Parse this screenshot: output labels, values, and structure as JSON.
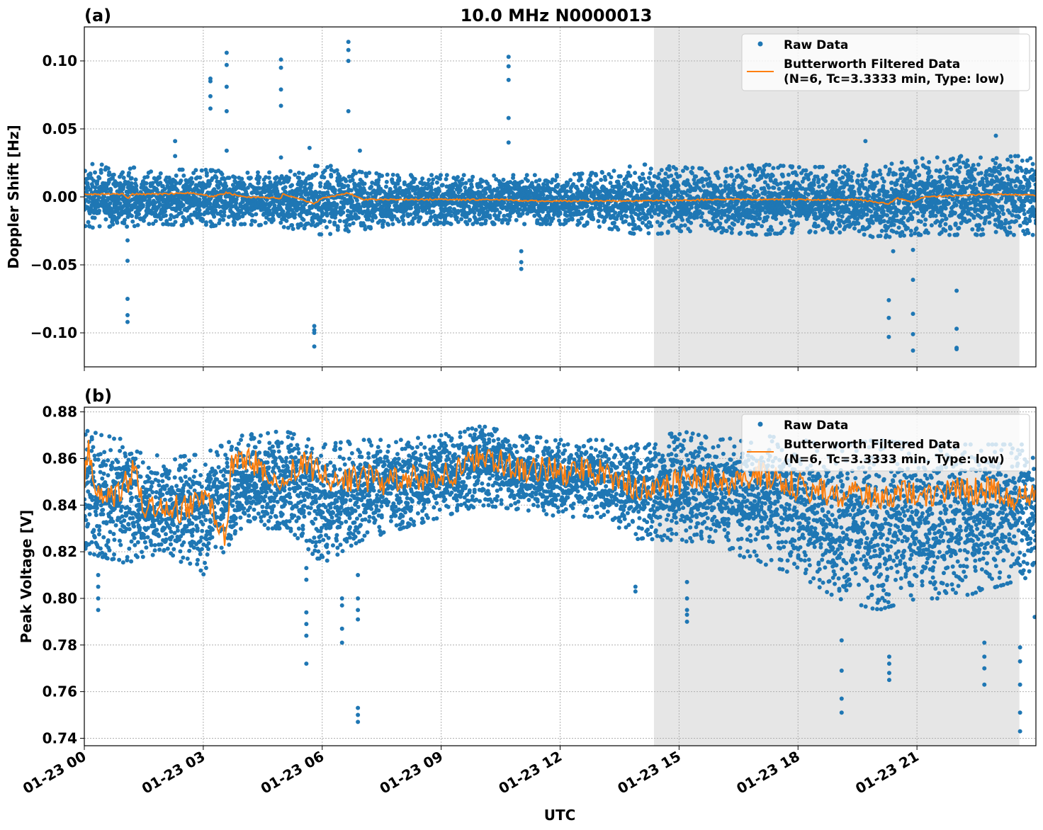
{
  "figure_title": "10.0 MHz N0000013",
  "chart_data": [
    {
      "panel_label": "(a)",
      "type": "scatter+line",
      "title": "10.0 MHz N0000013",
      "xlabel": "",
      "ylabel": "Doppler Shift [Hz]",
      "x_unit": "hours UTC on 01-23",
      "xlim": [
        "01-23 00:00",
        "01-24 00:00"
      ],
      "ylim": [
        -0.125,
        0.125
      ],
      "yticks": [
        "0.10",
        "0.05",
        "0.00",
        "−0.05",
        "−0.10"
      ],
      "ytick_values": [
        0.1,
        0.05,
        0.0,
        -0.05,
        -0.1
      ],
      "grid": true,
      "legend_placement": "upper-right",
      "shaded_interval": [
        "01-23 14:22",
        "01-23 23:35"
      ],
      "shade_color": "#e6e6e6",
      "series": [
        {
          "name": "Raw Data",
          "kind": "scatter",
          "color": "#1f77b4",
          "envelope_hourly": [
            [
              0,
              -0.025,
              0.025
            ],
            [
              1,
              -0.022,
              0.022
            ],
            [
              2,
              -0.02,
              0.02
            ],
            [
              3,
              -0.022,
              0.02
            ],
            [
              4,
              -0.02,
              0.018
            ],
            [
              5,
              -0.022,
              0.018
            ],
            [
              6,
              -0.028,
              0.024
            ],
            [
              7,
              -0.024,
              0.018
            ],
            [
              8,
              -0.02,
              0.016
            ],
            [
              9,
              -0.02,
              0.016
            ],
            [
              10,
              -0.02,
              0.016
            ],
            [
              11,
              -0.02,
              0.016
            ],
            [
              12,
              -0.02,
              0.016
            ],
            [
              13,
              -0.022,
              0.018
            ],
            [
              14,
              -0.028,
              0.024
            ],
            [
              15,
              -0.026,
              0.022
            ],
            [
              16,
              -0.026,
              0.02
            ],
            [
              17,
              -0.028,
              0.024
            ],
            [
              18,
              -0.026,
              0.022
            ],
            [
              19,
              -0.026,
              0.022
            ],
            [
              20,
              -0.03,
              0.024
            ],
            [
              21,
              -0.028,
              0.028
            ],
            [
              22,
              -0.028,
              0.03
            ],
            [
              23,
              -0.028,
              0.03
            ],
            [
              24,
              -0.028,
              0.03
            ]
          ],
          "outliers": [
            [
              1.09,
              -0.032
            ],
            [
              1.09,
              -0.047
            ],
            [
              1.09,
              -0.075
            ],
            [
              1.09,
              -0.087
            ],
            [
              1.09,
              -0.092
            ],
            [
              2.29,
              0.041
            ],
            [
              2.29,
              0.03
            ],
            [
              3.18,
              0.087
            ],
            [
              3.18,
              0.085
            ],
            [
              3.18,
              0.074
            ],
            [
              3.18,
              0.065
            ],
            [
              3.59,
              0.106
            ],
            [
              3.59,
              0.097
            ],
            [
              3.59,
              0.081
            ],
            [
              3.59,
              0.063
            ],
            [
              3.59,
              0.034
            ],
            [
              4.96,
              0.101
            ],
            [
              4.96,
              0.095
            ],
            [
              4.96,
              0.079
            ],
            [
              4.96,
              0.067
            ],
            [
              4.96,
              0.029
            ],
            [
              5.68,
              0.036
            ],
            [
              5.8,
              -0.095
            ],
            [
              5.8,
              -0.098
            ],
            [
              5.8,
              -0.1
            ],
            [
              5.8,
              -0.11
            ],
            [
              6.66,
              0.114
            ],
            [
              6.66,
              0.108
            ],
            [
              6.66,
              0.1
            ],
            [
              6.66,
              0.063
            ],
            [
              6.95,
              0.034
            ],
            [
              10.7,
              0.103
            ],
            [
              10.7,
              0.096
            ],
            [
              10.7,
              0.086
            ],
            [
              10.7,
              0.058
            ],
            [
              10.7,
              0.04
            ],
            [
              11.02,
              -0.04
            ],
            [
              11.02,
              -0.048
            ],
            [
              11.02,
              -0.053
            ],
            [
              19.7,
              0.041
            ],
            [
              20.29,
              -0.076
            ],
            [
              20.29,
              -0.089
            ],
            [
              20.29,
              -0.103
            ],
            [
              20.4,
              -0.04
            ],
            [
              20.9,
              -0.039
            ],
            [
              20.9,
              -0.061
            ],
            [
              20.9,
              -0.086
            ],
            [
              20.9,
              -0.101
            ],
            [
              20.9,
              -0.113
            ],
            [
              22.0,
              -0.069
            ],
            [
              22.0,
              -0.097
            ],
            [
              22.0,
              -0.111
            ],
            [
              22.0,
              -0.112
            ],
            [
              22.99,
              0.045
            ]
          ]
        },
        {
          "name": "Butterworth Filtered Data\n(N=6, Tc=3.3333 min, Type: low)",
          "kind": "line",
          "color": "#ff7f0e",
          "points": [
            [
              0,
              0.002
            ],
            [
              1,
              0.002
            ],
            [
              1.09,
              -0.001
            ],
            [
              1.2,
              0.002
            ],
            [
              2,
              0.002
            ],
            [
              2.5,
              0.003
            ],
            [
              3,
              0.002
            ],
            [
              3.2,
              0.0
            ],
            [
              3.59,
              0.003
            ],
            [
              4,
              0.0
            ],
            [
              4.96,
              -0.001
            ],
            [
              5,
              0.002
            ],
            [
              5.5,
              -0.002
            ],
            [
              5.8,
              -0.005
            ],
            [
              6,
              -0.001
            ],
            [
              6.66,
              0.003
            ],
            [
              7,
              -0.002
            ],
            [
              9,
              -0.002
            ],
            [
              10.7,
              -0.002
            ],
            [
              11,
              -0.003
            ],
            [
              14,
              -0.003
            ],
            [
              16,
              -0.002
            ],
            [
              18,
              -0.002
            ],
            [
              19.5,
              -0.002
            ],
            [
              20.29,
              -0.005
            ],
            [
              20.5,
              -0.001
            ],
            [
              20.9,
              -0.004
            ],
            [
              21.2,
              0.0
            ],
            [
              22,
              0.001
            ],
            [
              23,
              0.002
            ],
            [
              24,
              0.001
            ]
          ]
        }
      ]
    },
    {
      "panel_label": "(b)",
      "type": "scatter+line",
      "xlabel": "UTC",
      "ylabel": "Peak Voltage [V]",
      "xlim": [
        "01-23 00:00",
        "01-24 00:00"
      ],
      "ylim": [
        0.7368,
        0.882
      ],
      "yticks": [
        "0.88",
        "0.86",
        "0.84",
        "0.82",
        "0.80",
        "0.78",
        "0.76",
        "0.74"
      ],
      "ytick_values": [
        0.88,
        0.86,
        0.84,
        0.82,
        0.8,
        0.78,
        0.76,
        0.74
      ],
      "xticks": [
        "01-23 00",
        "01-23 03",
        "01-23 06",
        "01-23 09",
        "01-23 12",
        "01-23 15",
        "01-23 18",
        "01-23 21"
      ],
      "xtick_values": [
        0,
        3,
        6,
        9,
        12,
        15,
        18,
        21
      ],
      "grid": true,
      "legend_placement": "upper-right",
      "shaded_interval": [
        "01-23 14:22",
        "01-23 23:35"
      ],
      "series": [
        {
          "name": "Raw Data",
          "kind": "scatter",
          "color": "#1f77b4",
          "envelope_hourly": [
            [
              0,
              0.82,
              0.872
            ],
            [
              1,
              0.815,
              0.868
            ],
            [
              2,
              0.82,
              0.86
            ],
            [
              3,
              0.81,
              0.862
            ],
            [
              4,
              0.83,
              0.87
            ],
            [
              5,
              0.83,
              0.872
            ],
            [
              6,
              0.815,
              0.866
            ],
            [
              7,
              0.825,
              0.868
            ],
            [
              8,
              0.83,
              0.868
            ],
            [
              9,
              0.835,
              0.87
            ],
            [
              10,
              0.84,
              0.874
            ],
            [
              11,
              0.838,
              0.87
            ],
            [
              12,
              0.835,
              0.868
            ],
            [
              13,
              0.835,
              0.868
            ],
            [
              14,
              0.825,
              0.866
            ],
            [
              15,
              0.825,
              0.872
            ],
            [
              16,
              0.822,
              0.868
            ],
            [
              17,
              0.815,
              0.87
            ],
            [
              18,
              0.81,
              0.868
            ],
            [
              19,
              0.8,
              0.866
            ],
            [
              20,
              0.795,
              0.868
            ],
            [
              21,
              0.8,
              0.866
            ],
            [
              22,
              0.8,
              0.866
            ],
            [
              23,
              0.805,
              0.866
            ],
            [
              24,
              0.81,
              0.866
            ]
          ],
          "outliers": [
            [
              0.35,
              0.795
            ],
            [
              0.35,
              0.8
            ],
            [
              0.35,
              0.805
            ],
            [
              0.35,
              0.81
            ],
            [
              5.6,
              0.772
            ],
            [
              5.6,
              0.784
            ],
            [
              5.6,
              0.789
            ],
            [
              5.6,
              0.794
            ],
            [
              5.6,
              0.808
            ],
            [
              5.6,
              0.813
            ],
            [
              6.5,
              0.781
            ],
            [
              6.5,
              0.787
            ],
            [
              6.5,
              0.797
            ],
            [
              6.5,
              0.8
            ],
            [
              6.9,
              0.747
            ],
            [
              6.9,
              0.75
            ],
            [
              6.9,
              0.753
            ],
            [
              6.9,
              0.791
            ],
            [
              6.9,
              0.795
            ],
            [
              6.9,
              0.8
            ],
            [
              6.9,
              0.81
            ],
            [
              13.9,
              0.803
            ],
            [
              13.9,
              0.805
            ],
            [
              15.2,
              0.79
            ],
            [
              15.2,
              0.793
            ],
            [
              15.2,
              0.795
            ],
            [
              15.2,
              0.8
            ],
            [
              15.2,
              0.807
            ],
            [
              19.1,
              0.751
            ],
            [
              19.1,
              0.757
            ],
            [
              19.1,
              0.769
            ],
            [
              19.1,
              0.782
            ],
            [
              20.3,
              0.765
            ],
            [
              20.3,
              0.768
            ],
            [
              20.3,
              0.772
            ],
            [
              20.3,
              0.775
            ],
            [
              22.7,
              0.763
            ],
            [
              22.7,
              0.77
            ],
            [
              22.7,
              0.775
            ],
            [
              22.7,
              0.781
            ],
            [
              23.6,
              0.743
            ],
            [
              23.6,
              0.751
            ],
            [
              23.6,
              0.763
            ],
            [
              23.6,
              0.773
            ],
            [
              23.6,
              0.779
            ],
            [
              23.97,
              0.792
            ]
          ]
        },
        {
          "name": "Butterworth Filtered Data\n(N=6, Tc=3.3333 min, Type: low)",
          "kind": "line",
          "color": "#ff7f0e",
          "points": [
            [
              0,
              0.852
            ],
            [
              0.1,
              0.866
            ],
            [
              0.3,
              0.845
            ],
            [
              0.5,
              0.84
            ],
            [
              1,
              0.848
            ],
            [
              1.3,
              0.856
            ],
            [
              1.5,
              0.84
            ],
            [
              2,
              0.84
            ],
            [
              2.5,
              0.838
            ],
            [
              3,
              0.845
            ],
            [
              3.5,
              0.83
            ],
            [
              3.6,
              0.826
            ],
            [
              3.7,
              0.858
            ],
            [
              4,
              0.86
            ],
            [
              4.5,
              0.856
            ],
            [
              5,
              0.85
            ],
            [
              5.5,
              0.858
            ],
            [
              6,
              0.853
            ],
            [
              6.5,
              0.85
            ],
            [
              7,
              0.852
            ],
            [
              7.5,
              0.85
            ],
            [
              8,
              0.852
            ],
            [
              8.5,
              0.852
            ],
            [
              9,
              0.853
            ],
            [
              9.5,
              0.855
            ],
            [
              10,
              0.862
            ],
            [
              10.5,
              0.858
            ],
            [
              11,
              0.855
            ],
            [
              11.5,
              0.856
            ],
            [
              12,
              0.854
            ],
            [
              12.5,
              0.855
            ],
            [
              13,
              0.854
            ],
            [
              13.5,
              0.85
            ],
            [
              14,
              0.848
            ],
            [
              14.5,
              0.846
            ],
            [
              15,
              0.85
            ],
            [
              15.5,
              0.853
            ],
            [
              16,
              0.848
            ],
            [
              16.5,
              0.85
            ],
            [
              17,
              0.854
            ],
            [
              17.5,
              0.85
            ],
            [
              18,
              0.848
            ],
            [
              18.5,
              0.846
            ],
            [
              19,
              0.845
            ],
            [
              19.5,
              0.846
            ],
            [
              20,
              0.842
            ],
            [
              20.5,
              0.846
            ],
            [
              21,
              0.844
            ],
            [
              21.5,
              0.845
            ],
            [
              22,
              0.846
            ],
            [
              22.5,
              0.846
            ],
            [
              23,
              0.846
            ],
            [
              23.5,
              0.842
            ],
            [
              24,
              0.846
            ]
          ]
        }
      ]
    }
  ],
  "legend": {
    "raw_label": "Raw Data",
    "filtered_line1": "Butterworth Filtered Data",
    "filtered_line2": "(N=6, Tc=3.3333 min, Type: low)"
  }
}
